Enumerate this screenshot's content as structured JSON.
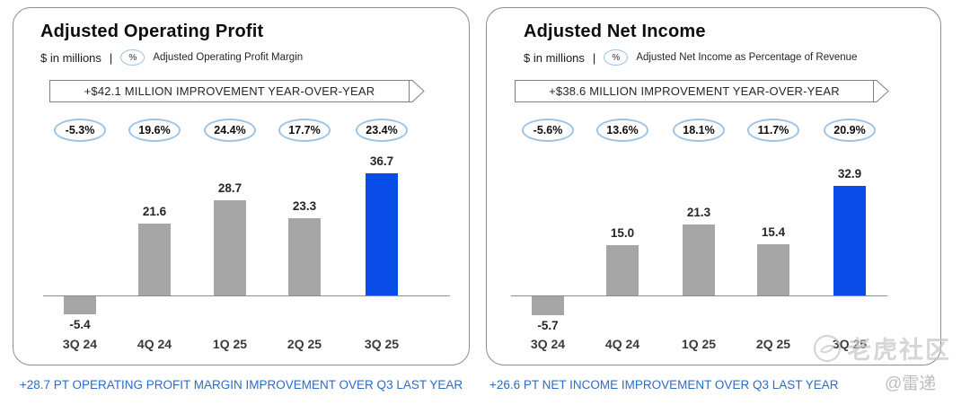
{
  "colors": {
    "bar_default": "#a6a6a6",
    "bar_highlight": "#0a4ce8",
    "oval_border": "#9dc3e6",
    "footnote_blue": "#2e6bc4",
    "panel_border": "#8c8c8c"
  },
  "watermark": {
    "community": "老虎社区",
    "author": "@雷递"
  },
  "chart_data": [
    {
      "type": "bar",
      "title": "Adjusted Operating Profit",
      "unit_label": "$ in millions",
      "separator": "|",
      "percent_symbol": "%",
      "margin_label": "Adjusted Operating Profit Margin",
      "banner": "+$42.1 MILLION IMPROVEMENT YEAR-OVER-YEAR",
      "categories": [
        "3Q 24",
        "4Q 24",
        "1Q 25",
        "2Q 25",
        "3Q 25"
      ],
      "values": [
        -5.4,
        21.6,
        28.7,
        23.3,
        36.7
      ],
      "margin_percent": [
        "-5.3%",
        "19.6%",
        "24.4%",
        "17.7%",
        "23.4%"
      ],
      "highlight_index": 4,
      "footnote": "+28.7 PT OPERATING PROFIT MARGIN IMPROVEMENT OVER Q3 LAST YEAR",
      "xlabel": "",
      "ylabel": "",
      "grid": false,
      "legend": "none",
      "ylim": [
        -10,
        40
      ]
    },
    {
      "type": "bar",
      "title": "Adjusted Net Income",
      "unit_label": "$ in millions",
      "separator": "|",
      "percent_symbol": "%",
      "margin_label": "Adjusted Net Income as Percentage of Revenue",
      "banner": "+$38.6 MILLION IMPROVEMENT YEAR-OVER-YEAR",
      "categories": [
        "3Q 24",
        "4Q 24",
        "1Q 25",
        "2Q 25",
        "3Q 25"
      ],
      "values": [
        -5.7,
        15.0,
        21.3,
        15.4,
        32.9
      ],
      "margin_percent": [
        "-5.6%",
        "13.6%",
        "18.1%",
        "11.7%",
        "20.9%"
      ],
      "highlight_index": 4,
      "footnote": "+26.6 PT NET INCOME IMPROVEMENT OVER Q3 LAST YEAR",
      "xlabel": "",
      "ylabel": "",
      "grid": false,
      "legend": "none",
      "ylim": [
        -10,
        40
      ]
    }
  ]
}
